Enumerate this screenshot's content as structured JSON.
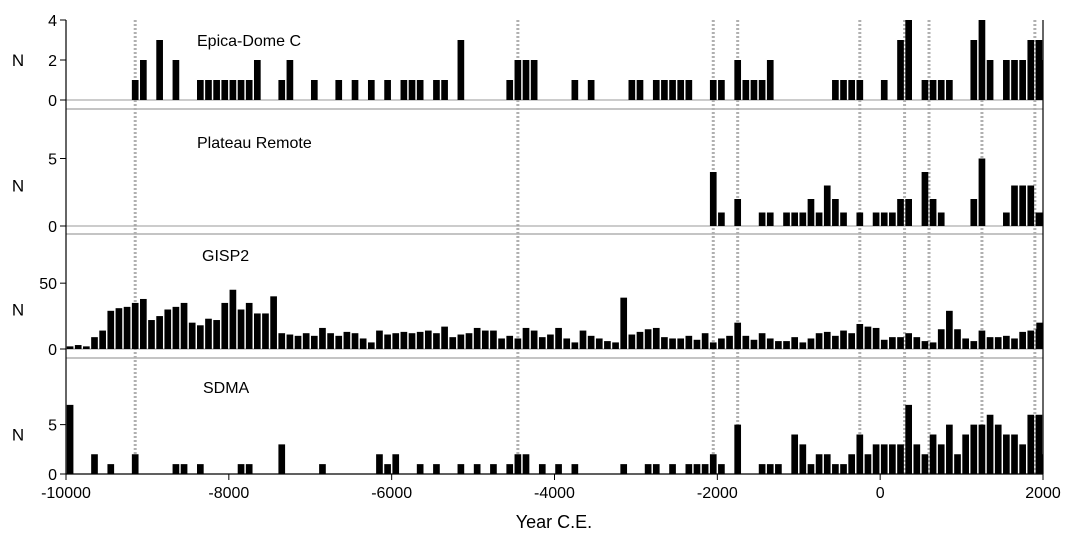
{
  "chart_data": {
    "type": "bar",
    "xlabel": "Year C.E.",
    "xlim": [
      -10000,
      2000
    ],
    "x_ticks": [
      -10000,
      -8000,
      -6000,
      -4000,
      -2000,
      0,
      2000
    ],
    "bin_width": 100,
    "event_lines": [
      -9150,
      -4450,
      -2050,
      -1750,
      -250,
      300,
      600,
      1250,
      1900
    ],
    "panels": [
      {
        "name": "Epica-Dome C",
        "ylabel": "N",
        "ylim": [
          0,
          4
        ],
        "yticks": [
          0,
          2,
          4
        ],
        "bar_color": "#000000",
        "bars": [
          [
            -9150,
            1
          ],
          [
            -9050,
            2
          ],
          [
            -8850,
            3
          ],
          [
            -8650,
            2
          ],
          [
            -8350,
            1
          ],
          [
            -8250,
            1
          ],
          [
            -8150,
            1
          ],
          [
            -8050,
            1
          ],
          [
            -7950,
            1
          ],
          [
            -7850,
            1
          ],
          [
            -7750,
            1
          ],
          [
            -7650,
            2
          ],
          [
            -7350,
            1
          ],
          [
            -7250,
            2
          ],
          [
            -6950,
            1
          ],
          [
            -6650,
            1
          ],
          [
            -6450,
            1
          ],
          [
            -6250,
            1
          ],
          [
            -6050,
            1
          ],
          [
            -5850,
            1
          ],
          [
            -5750,
            1
          ],
          [
            -5650,
            1
          ],
          [
            -5450,
            1
          ],
          [
            -5350,
            1
          ],
          [
            -5150,
            3
          ],
          [
            -4550,
            1
          ],
          [
            -4450,
            2
          ],
          [
            -4350,
            2
          ],
          [
            -4250,
            2
          ],
          [
            -3750,
            1
          ],
          [
            -3550,
            1
          ],
          [
            -3050,
            1
          ],
          [
            -2950,
            1
          ],
          [
            -2750,
            1
          ],
          [
            -2650,
            1
          ],
          [
            -2550,
            1
          ],
          [
            -2450,
            1
          ],
          [
            -2350,
            1
          ],
          [
            -2050,
            1
          ],
          [
            -1950,
            1
          ],
          [
            -1750,
            2
          ],
          [
            -1650,
            1
          ],
          [
            -1550,
            1
          ],
          [
            -1450,
            1
          ],
          [
            -1350,
            2
          ],
          [
            -550,
            1
          ],
          [
            -450,
            1
          ],
          [
            -350,
            1
          ],
          [
            -250,
            1
          ],
          [
            50,
            1
          ],
          [
            250,
            3
          ],
          [
            350,
            4
          ],
          [
            550,
            1
          ],
          [
            650,
            1
          ],
          [
            750,
            1
          ],
          [
            850,
            1
          ],
          [
            1150,
            3
          ],
          [
            1250,
            4
          ],
          [
            1350,
            2
          ],
          [
            1550,
            2
          ],
          [
            1650,
            2
          ],
          [
            1750,
            2
          ],
          [
            1850,
            3
          ],
          [
            1950,
            3
          ],
          [
            2000,
            2
          ]
        ]
      },
      {
        "name": "Plateau Remote",
        "ylabel": "N",
        "ylim": [
          0,
          6
        ],
        "yticks": [
          0,
          5
        ],
        "bar_color": "#000000",
        "bars": [
          [
            -2050,
            4
          ],
          [
            -1950,
            1
          ],
          [
            -1750,
            2
          ],
          [
            -1450,
            1
          ],
          [
            -1350,
            1
          ],
          [
            -1150,
            1
          ],
          [
            -1050,
            1
          ],
          [
            -950,
            1
          ],
          [
            -850,
            2
          ],
          [
            -750,
            1
          ],
          [
            -650,
            3
          ],
          [
            -550,
            2
          ],
          [
            -450,
            1
          ],
          [
            -250,
            1
          ],
          [
            -50,
            1
          ],
          [
            50,
            1
          ],
          [
            150,
            1
          ],
          [
            250,
            2
          ],
          [
            350,
            2
          ],
          [
            550,
            4
          ],
          [
            650,
            2
          ],
          [
            750,
            1
          ],
          [
            1150,
            2
          ],
          [
            1250,
            5
          ],
          [
            1550,
            1
          ],
          [
            1650,
            3
          ],
          [
            1750,
            3
          ],
          [
            1850,
            3
          ],
          [
            1950,
            1
          ],
          [
            2000,
            1
          ]
        ]
      },
      {
        "name": "GISP2",
        "ylabel": "N",
        "ylim": [
          0,
          60
        ],
        "yticks": [
          0,
          50
        ],
        "bar_color": "#000000",
        "bars": [
          [
            -9950,
            2
          ],
          [
            -9850,
            3
          ],
          [
            -9750,
            2
          ],
          [
            -9650,
            9
          ],
          [
            -9550,
            14
          ],
          [
            -9450,
            29
          ],
          [
            -9350,
            31
          ],
          [
            -9250,
            32
          ],
          [
            -9150,
            35
          ],
          [
            -9050,
            38
          ],
          [
            -8950,
            22
          ],
          [
            -8850,
            25
          ],
          [
            -8750,
            30
          ],
          [
            -8650,
            32
          ],
          [
            -8550,
            35
          ],
          [
            -8450,
            20
          ],
          [
            -8350,
            18
          ],
          [
            -8250,
            23
          ],
          [
            -8150,
            22
          ],
          [
            -8050,
            35
          ],
          [
            -7950,
            45
          ],
          [
            -7850,
            30
          ],
          [
            -7750,
            35
          ],
          [
            -7650,
            27
          ],
          [
            -7550,
            27
          ],
          [
            -7450,
            40
          ],
          [
            -7350,
            12
          ],
          [
            -7250,
            11
          ],
          [
            -7150,
            10
          ],
          [
            -7050,
            12
          ],
          [
            -6950,
            10
          ],
          [
            -6850,
            16
          ],
          [
            -6750,
            12
          ],
          [
            -6650,
            10
          ],
          [
            -6550,
            13
          ],
          [
            -6450,
            12
          ],
          [
            -6350,
            8
          ],
          [
            -6250,
            5
          ],
          [
            -6150,
            14
          ],
          [
            -6050,
            11
          ],
          [
            -5950,
            12
          ],
          [
            -5850,
            13
          ],
          [
            -5750,
            12
          ],
          [
            -5650,
            13
          ],
          [
            -5550,
            14
          ],
          [
            -5450,
            12
          ],
          [
            -5350,
            17
          ],
          [
            -5250,
            9
          ],
          [
            -5150,
            11
          ],
          [
            -5050,
            12
          ],
          [
            -4950,
            16
          ],
          [
            -4850,
            14
          ],
          [
            -4750,
            14
          ],
          [
            -4650,
            8
          ],
          [
            -4550,
            10
          ],
          [
            -4450,
            8
          ],
          [
            -4350,
            16
          ],
          [
            -4250,
            14
          ],
          [
            -4150,
            9
          ],
          [
            -4050,
            11
          ],
          [
            -3950,
            16
          ],
          [
            -3850,
            8
          ],
          [
            -3750,
            5
          ],
          [
            -3650,
            14
          ],
          [
            -3550,
            10
          ],
          [
            -3450,
            8
          ],
          [
            -3350,
            6
          ],
          [
            -3250,
            5
          ],
          [
            -3150,
            39
          ],
          [
            -3050,
            11
          ],
          [
            -2950,
            13
          ],
          [
            -2850,
            15
          ],
          [
            -2750,
            16
          ],
          [
            -2650,
            9
          ],
          [
            -2550,
            8
          ],
          [
            -2450,
            8
          ],
          [
            -2350,
            10
          ],
          [
            -2250,
            7
          ],
          [
            -2150,
            12
          ],
          [
            -2050,
            5
          ],
          [
            -1950,
            8
          ],
          [
            -1850,
            10
          ],
          [
            -1750,
            20
          ],
          [
            -1650,
            10
          ],
          [
            -1550,
            7
          ],
          [
            -1450,
            12
          ],
          [
            -1350,
            8
          ],
          [
            -1250,
            6
          ],
          [
            -1150,
            6
          ],
          [
            -1050,
            9
          ],
          [
            -950,
            5
          ],
          [
            -850,
            8
          ],
          [
            -750,
            12
          ],
          [
            -650,
            13
          ],
          [
            -550,
            10
          ],
          [
            -450,
            14
          ],
          [
            -350,
            12
          ],
          [
            -250,
            19
          ],
          [
            -150,
            17
          ],
          [
            -50,
            16
          ],
          [
            50,
            7
          ],
          [
            150,
            9
          ],
          [
            250,
            9
          ],
          [
            350,
            12
          ],
          [
            450,
            9
          ],
          [
            550,
            6
          ],
          [
            650,
            5
          ],
          [
            750,
            15
          ],
          [
            850,
            29
          ],
          [
            950,
            15
          ],
          [
            1050,
            8
          ],
          [
            1150,
            6
          ],
          [
            1250,
            14
          ],
          [
            1350,
            9
          ],
          [
            1450,
            9
          ],
          [
            1550,
            10
          ],
          [
            1650,
            8
          ],
          [
            1750,
            13
          ],
          [
            1850,
            14
          ],
          [
            1950,
            15
          ],
          [
            2000,
            20
          ]
        ]
      },
      {
        "name": "SDMA",
        "ylabel": "N",
        "ylim": [
          0,
          8
        ],
        "yticks": [
          0,
          5
        ],
        "bar_color": "#000000",
        "bars": [
          [
            -9950,
            7
          ],
          [
            -9650,
            2
          ],
          [
            -9450,
            1
          ],
          [
            -9150,
            2
          ],
          [
            -8650,
            1
          ],
          [
            -8550,
            1
          ],
          [
            -8350,
            1
          ],
          [
            -7850,
            1
          ],
          [
            -7750,
            1
          ],
          [
            -7350,
            3
          ],
          [
            -6850,
            1
          ],
          [
            -6150,
            2
          ],
          [
            -6050,
            1
          ],
          [
            -5950,
            2
          ],
          [
            -5650,
            1
          ],
          [
            -5450,
            1
          ],
          [
            -5150,
            1
          ],
          [
            -4950,
            1
          ],
          [
            -4750,
            1
          ],
          [
            -4550,
            1
          ],
          [
            -4450,
            2
          ],
          [
            -4350,
            2
          ],
          [
            -4150,
            1
          ],
          [
            -3950,
            1
          ],
          [
            -3750,
            1
          ],
          [
            -3150,
            1
          ],
          [
            -2850,
            1
          ],
          [
            -2750,
            1
          ],
          [
            -2550,
            1
          ],
          [
            -2350,
            1
          ],
          [
            -2250,
            1
          ],
          [
            -2150,
            1
          ],
          [
            -2050,
            2
          ],
          [
            -1950,
            1
          ],
          [
            -1750,
            5
          ],
          [
            -1450,
            1
          ],
          [
            -1350,
            1
          ],
          [
            -1250,
            1
          ],
          [
            -1050,
            4
          ],
          [
            -950,
            3
          ],
          [
            -850,
            1
          ],
          [
            -750,
            2
          ],
          [
            -650,
            2
          ],
          [
            -550,
            1
          ],
          [
            -450,
            1
          ],
          [
            -350,
            2
          ],
          [
            -250,
            4
          ],
          [
            -150,
            2
          ],
          [
            -50,
            3
          ],
          [
            50,
            3
          ],
          [
            150,
            3
          ],
          [
            250,
            3
          ],
          [
            350,
            7
          ],
          [
            450,
            3
          ],
          [
            550,
            2
          ],
          [
            650,
            4
          ],
          [
            750,
            3
          ],
          [
            850,
            5
          ],
          [
            950,
            2
          ],
          [
            1050,
            4
          ],
          [
            1150,
            5
          ],
          [
            1250,
            5
          ],
          [
            1350,
            6
          ],
          [
            1450,
            5
          ],
          [
            1550,
            4
          ],
          [
            1650,
            4
          ],
          [
            1750,
            3
          ],
          [
            1850,
            6
          ],
          [
            1950,
            6
          ],
          [
            2000,
            2
          ]
        ]
      }
    ]
  }
}
